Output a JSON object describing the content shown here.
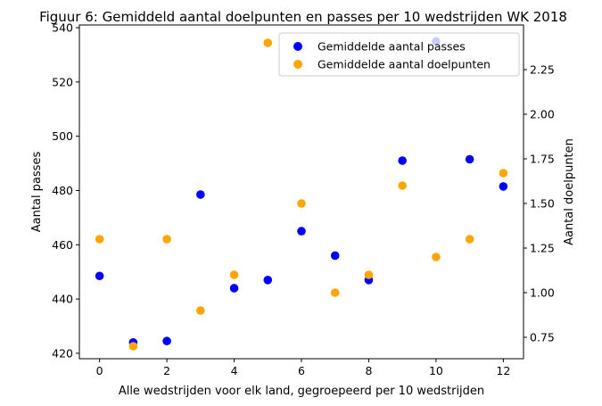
{
  "chart_data": {
    "type": "scatter",
    "title": "Figuur 6: Gemiddeld aantal doelpunten en passes per 10 wedstrijden WK 2018",
    "xlabel": "Alle wedstrijden voor elk land, gegroepeerd per 10 wedstrijden",
    "ylabel_left": "Aantal passes",
    "ylabel_right": "Aantal doelpunten",
    "xlim": [
      -0.6,
      12.6
    ],
    "ylim_left": [
      418,
      541
    ],
    "ylim_right": [
      0.63,
      2.5
    ],
    "x_ticks": [
      0,
      2,
      4,
      6,
      8,
      10,
      12
    ],
    "y_ticks_left": [
      420,
      440,
      460,
      480,
      500,
      520,
      540
    ],
    "y_ticks_right": [
      "0.75",
      "1.00",
      "1.25",
      "1.50",
      "1.75",
      "2.00",
      "2.25"
    ],
    "legend_position": "upper right",
    "series": [
      {
        "name": "Gemiddelde aantal passes",
        "axis": "left",
        "color": "#0000ff",
        "x": [
          0,
          1,
          2,
          3,
          4,
          5,
          6,
          7,
          8,
          9,
          10,
          11,
          12
        ],
        "y": [
          448.5,
          424,
          424.5,
          478.5,
          444,
          447,
          465,
          456,
          447,
          491,
          535,
          491.5,
          481.5
        ]
      },
      {
        "name": "Gemiddelde aantal doelpunten",
        "axis": "right",
        "color": "#ffa500",
        "x": [
          0,
          1,
          2,
          3,
          4,
          5,
          6,
          7,
          8,
          9,
          10,
          11,
          12
        ],
        "y": [
          1.3,
          0.7,
          1.3,
          0.9,
          1.1,
          2.4,
          1.5,
          1.0,
          1.1,
          1.6,
          1.2,
          1.3,
          1.67
        ]
      }
    ]
  }
}
